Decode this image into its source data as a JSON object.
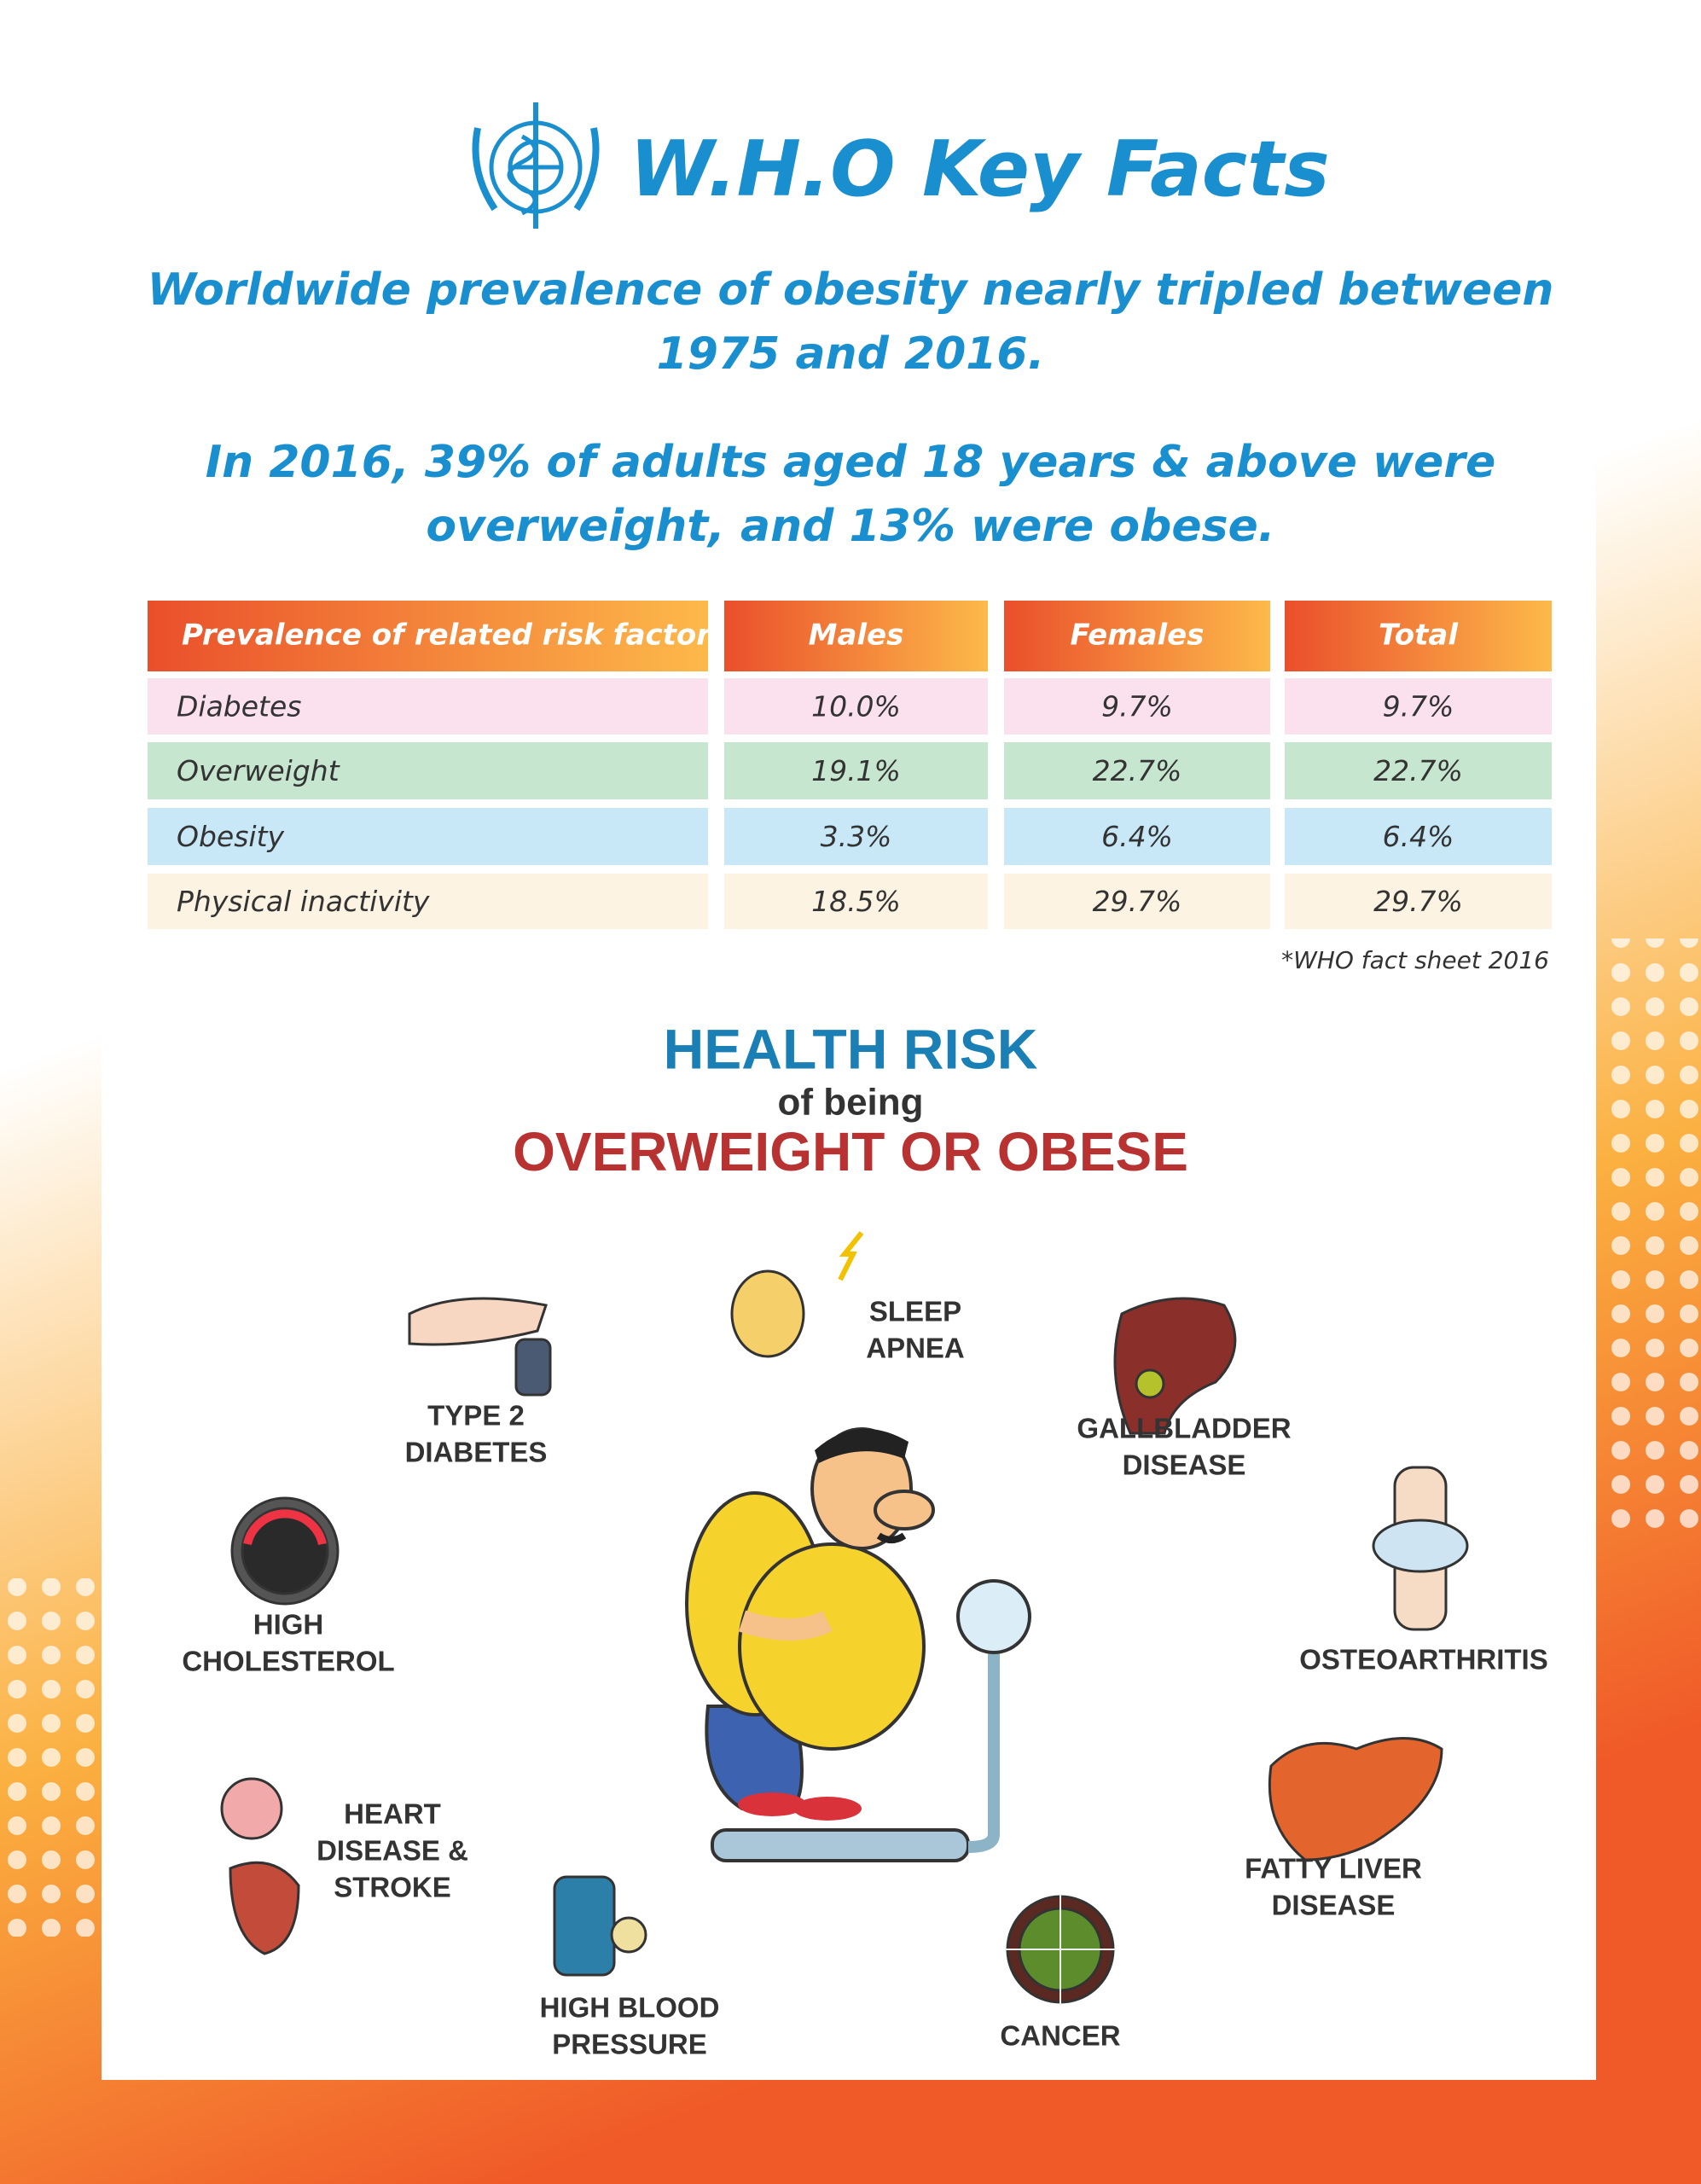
{
  "header": {
    "title": "W.H.O Key Facts",
    "facts": [
      [
        "Worldwide prevalence of obesity nearly tripled between",
        "1975 and 2016."
      ],
      [
        "In 2016, 39% of adults aged 18 years & above were",
        "overweight, and 13% were obese."
      ]
    ]
  },
  "table": {
    "columns": [
      "Prevalence of related risk factors",
      "Males",
      "Females",
      "Total"
    ],
    "rows": [
      [
        "Diabetes",
        "10.0%",
        "9.7%",
        "9.7%"
      ],
      [
        "Overweight",
        "19.1%",
        "22.7%",
        "22.7%"
      ],
      [
        "Obesity",
        "3.3%",
        "6.4%",
        "6.4%"
      ],
      [
        "Physical inactivity",
        "18.5%",
        "29.7%",
        "29.7%"
      ]
    ],
    "footnote": "*WHO fact sheet 2016"
  },
  "health_risk": {
    "title": "HEALTH RISK",
    "connector": "of being",
    "subtitle": "OVERWEIGHT OR OBESE",
    "risks": [
      [
        "SLEEP",
        "APNEA"
      ],
      [
        "TYPE 2",
        "DIABETES"
      ],
      [
        "GALLBLADDER",
        "DISEASE"
      ],
      [
        "HIGH",
        "CHOLESTEROL"
      ],
      [
        "OSTEOARTHRITIS"
      ],
      [
        "HEART",
        "DISEASE &",
        "STROKE"
      ],
      [
        "FATTY LIVER",
        "DISEASE"
      ],
      [
        "HIGH BLOOD",
        "PRESSURE"
      ],
      [
        "CANCER"
      ]
    ]
  }
}
